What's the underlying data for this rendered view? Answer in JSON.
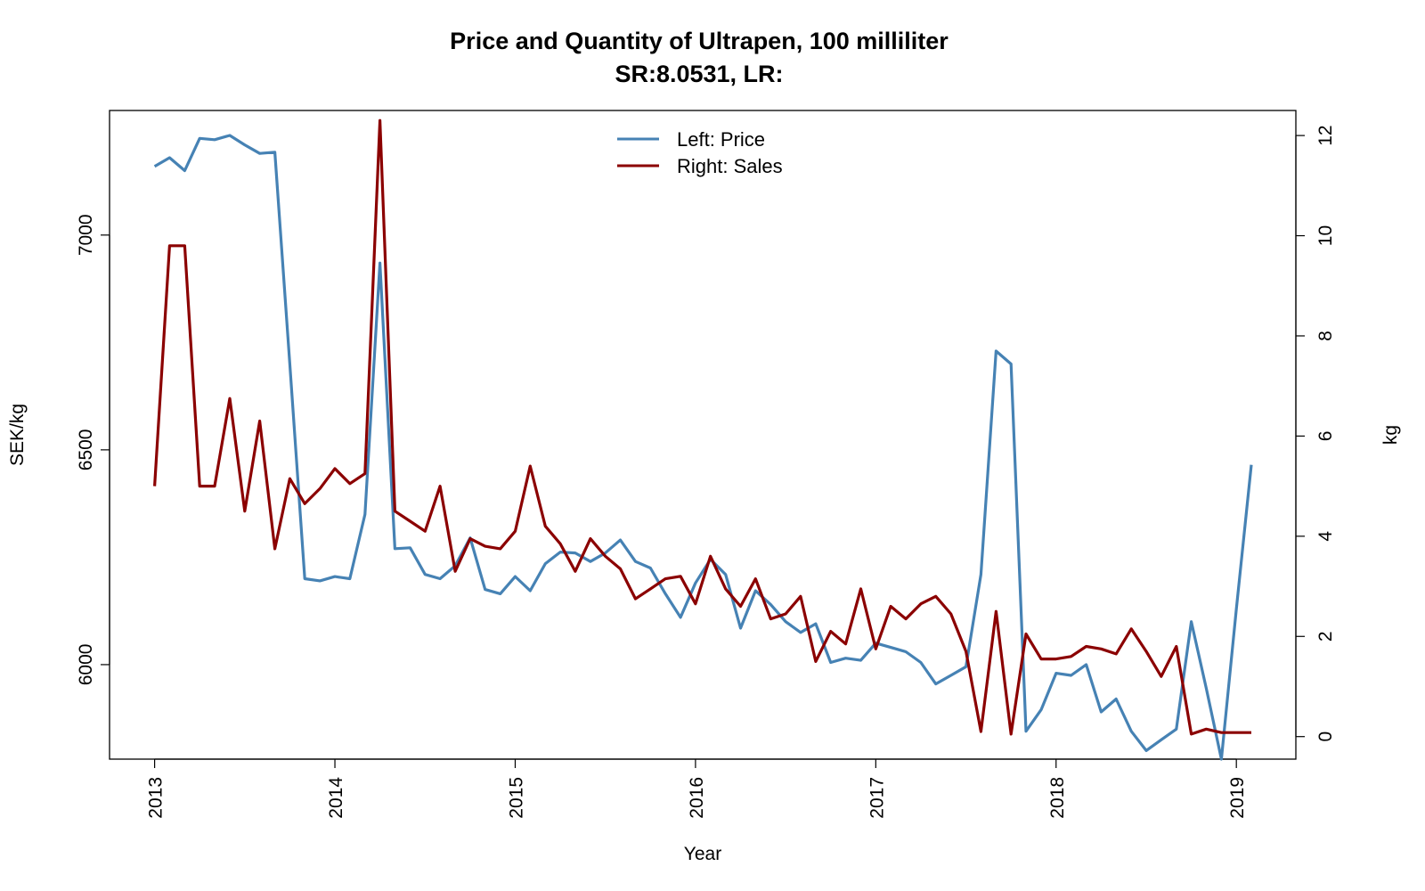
{
  "chart_data": {
    "type": "line",
    "title": "Price and Quantity of Ultrapen, 100 milliliter",
    "subtitle": "SR:8.0531, LR:",
    "xlabel": "Year",
    "ylabel_left": "SEK/kg",
    "ylabel_right": "kg",
    "x_ticks": [
      "2013",
      "2014",
      "2015",
      "2016",
      "2017",
      "2018",
      "2019"
    ],
    "y_left_ticks": [
      "6000",
      "6500",
      "7000"
    ],
    "y_right_ticks": [
      "0",
      "2",
      "4",
      "6",
      "8",
      "10",
      "12"
    ],
    "xlim": [
      2012.75,
      2019.33
    ],
    "y_left_lim": [
      5780,
      7290
    ],
    "y_right_lim": [
      -0.45,
      12.5
    ],
    "legend_position": "top",
    "colors": {
      "price": "#4682B4",
      "sales": "#8B0000"
    },
    "legend": [
      "Left: Price",
      "Right: Sales"
    ],
    "x": [
      2013.0,
      2013.083,
      2013.167,
      2013.25,
      2013.333,
      2013.417,
      2013.5,
      2013.583,
      2013.667,
      2013.75,
      2013.833,
      2013.917,
      2014.0,
      2014.083,
      2014.167,
      2014.25,
      2014.333,
      2014.417,
      2014.5,
      2014.583,
      2014.667,
      2014.75,
      2014.833,
      2014.917,
      2015.0,
      2015.083,
      2015.167,
      2015.25,
      2015.333,
      2015.417,
      2015.5,
      2015.583,
      2015.667,
      2015.75,
      2015.833,
      2015.917,
      2016.0,
      2016.083,
      2016.167,
      2016.25,
      2016.333,
      2016.417,
      2016.5,
      2016.583,
      2016.667,
      2016.75,
      2016.833,
      2016.917,
      2017.0,
      2017.083,
      2017.167,
      2017.25,
      2017.333,
      2017.417,
      2017.5,
      2017.583,
      2017.667,
      2017.75,
      2017.833,
      2017.917,
      2018.0,
      2018.083,
      2018.167,
      2018.25,
      2018.333,
      2018.417,
      2018.5,
      2018.583,
      2018.667,
      2018.75,
      2018.833,
      2018.917,
      2019.0,
      2019.083
    ],
    "series": [
      {
        "name": "Left: Price",
        "axis": "left",
        "values": [
          7160,
          7180,
          7150,
          7225,
          7222,
          7232,
          7210,
          7190,
          7193,
          6700,
          6200,
          6195,
          6205,
          6200,
          6350,
          6935,
          6270,
          6272,
          6210,
          6200,
          6230,
          6295,
          6175,
          6165,
          6205,
          6172,
          6235,
          6262,
          6260,
          6240,
          6260,
          6290,
          6240,
          6225,
          6165,
          6110,
          6190,
          6245,
          6210,
          6085,
          6172,
          6140,
          6100,
          6075,
          6095,
          6005,
          6015,
          6010,
          6050,
          6040,
          6030,
          6005,
          5955,
          5975,
          5995,
          6210,
          6730,
          6700,
          5845,
          5895,
          5980,
          5975,
          6000,
          5890,
          5920,
          5845,
          5800,
          5825,
          5850,
          6100,
          5945,
          5780,
          6130,
          6465
        ]
      },
      {
        "name": "Right: Sales",
        "axis": "right",
        "values": [
          5.0,
          9.8,
          9.8,
          5.0,
          5.0,
          6.75,
          4.5,
          6.3,
          3.75,
          5.15,
          4.65,
          4.95,
          5.35,
          5.05,
          5.25,
          12.3,
          4.5,
          4.3,
          4.1,
          5.0,
          3.3,
          3.95,
          3.8,
          3.75,
          4.1,
          5.4,
          4.2,
          3.85,
          3.3,
          3.95,
          3.6,
          3.35,
          2.75,
          2.95,
          3.15,
          3.2,
          2.65,
          3.6,
          2.95,
          2.6,
          3.15,
          2.35,
          2.45,
          2.8,
          1.5,
          2.1,
          1.85,
          2.95,
          1.75,
          2.6,
          2.35,
          2.65,
          2.8,
          2.45,
          1.7,
          0.1,
          2.5,
          0.05,
          2.05,
          1.55,
          1.55,
          1.6,
          1.8,
          1.75,
          1.65,
          2.15,
          1.7,
          1.2,
          1.8,
          0.05,
          0.15,
          0.08,
          0.08,
          0.08
        ]
      }
    ]
  }
}
